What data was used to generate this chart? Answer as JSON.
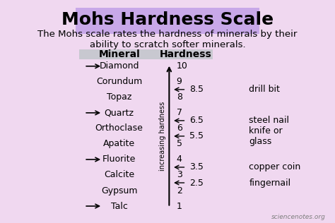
{
  "bg_color": "#f0d8f0",
  "title_box_color": "#c8a8e8",
  "title": "Mohs Hardness Scale",
  "subtitle": "The Mohs scale rates the hardness of minerals by their\nability to scratch softer minerals.",
  "col_header_mineral": "Mineral",
  "col_header_hardness": "Hardness",
  "minerals": [
    "Diamond",
    "Corundum",
    "Topaz",
    "Quartz",
    "Orthoclase",
    "Apatite",
    "Fluorite",
    "Calcite",
    "Gypsum",
    "Talc"
  ],
  "hardness_values": [
    10,
    9,
    8,
    7,
    6,
    5,
    4,
    3,
    2,
    1
  ],
  "arrow_minerals": [
    "Diamond",
    "Quartz",
    "Fluorite",
    "Talc"
  ],
  "tool_hardness": [
    8.5,
    6.5,
    5.5,
    3.5,
    2.5
  ],
  "tool_hardness_labels": [
    "8.5",
    "6.5",
    "5.5",
    "3.5",
    "2.5"
  ],
  "tool_names": [
    "drill bit",
    "steel nail",
    "knife or\nglass",
    "copper coin",
    "fingernail"
  ],
  "axis_label": "increasing hardness",
  "watermark": "sciencenotes.org",
  "title_fontsize": 18,
  "subtitle_fontsize": 9.5,
  "header_fontsize": 10,
  "mineral_fontsize": 9,
  "tool_fontsize": 9,
  "axis_label_fontsize": 7,
  "header_box_color": "#c8c8d0"
}
